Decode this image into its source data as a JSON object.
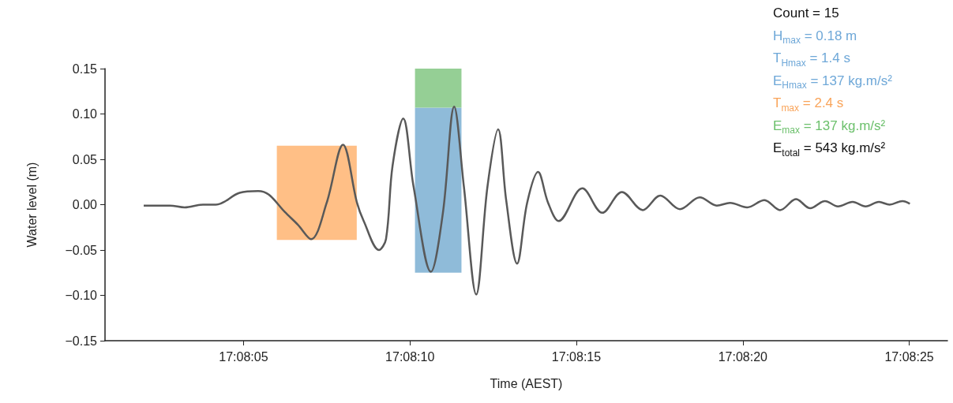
{
  "chart_data": {
    "type": "line",
    "xlabel": "Time (AEST)",
    "ylabel": "Water level (m)",
    "xlim": [
      17.133566,
      17.140597
    ],
    "xticks": [
      {
        "value": 17.134722,
        "label": "17:08:05"
      },
      {
        "value": 17.136111,
        "label": "17:08:10"
      },
      {
        "value": 17.1375,
        "label": "17:08:15"
      },
      {
        "value": 17.138889,
        "label": "17:08:20"
      },
      {
        "value": 17.140278,
        "label": "17:08:25"
      }
    ],
    "ylim": [
      -0.15,
      0.15
    ],
    "yticks": [
      {
        "value": -0.15,
        "label": "−0.15"
      },
      {
        "value": -0.1,
        "label": "−0.10"
      },
      {
        "value": -0.05,
        "label": "−0.05"
      },
      {
        "value": 0,
        "label": "0.00"
      },
      {
        "value": 0.05,
        "label": "0.05"
      },
      {
        "value": 0.1,
        "label": "0.10"
      },
      {
        "value": 0.15,
        "label": "0.15"
      }
    ],
    "grid": false,
    "series": [
      {
        "type": "histogram",
        "color": "#ffbf86",
        "bins": [
          17.135,
          17.135667
        ],
        "values": [
          0.104
        ],
        "base": [
          -0.039
        ]
      },
      {
        "type": "histogram",
        "color": "#8fbbd9",
        "bins": [
          17.136153,
          17.136541
        ],
        "values": [
          0.182
        ],
        "base": [
          -0.075
        ]
      },
      {
        "type": "histogram",
        "color": "#95cf95",
        "bins": [
          17.136153,
          17.136541
        ],
        "values": [
          0.043
        ],
        "base": [
          0.107
        ]
      },
      {
        "color": "#595959",
        "x": [
          17.133889,
          17.134108,
          17.13423,
          17.134383,
          17.134491,
          17.134689,
          17.134844,
          17.134933,
          17.135066,
          17.135175,
          17.135286,
          17.135416,
          17.135552,
          17.135669,
          17.135725,
          17.135852,
          17.135911,
          17.135966,
          17.136055,
          17.136141,
          17.136286,
          17.136386,
          17.13648,
          17.136561,
          17.136664,
          17.136758,
          17.136847,
          17.136914,
          17.137005,
          17.137089,
          17.13718,
          17.137264,
          17.137352,
          17.13755,
          17.137716,
          17.13788,
          17.138055,
          17.1382,
          17.138364,
          17.13853,
          17.138672,
          17.138783,
          17.138925,
          17.139069,
          17.1392,
          17.139333,
          17.139452,
          17.139575,
          17.139683,
          17.139805,
          17.139914,
          17.140025,
          17.140114,
          17.140222,
          17.140283
        ],
        "values": [
          -0.001,
          -0.001,
          -0.003,
          0.0,
          0.0,
          0.013,
          0.015,
          0.011,
          -0.008,
          -0.022,
          -0.038,
          0.002,
          0.066,
          0.002,
          -0.018,
          -0.05,
          -0.038,
          0.043,
          0.095,
          0.02,
          -0.074,
          -0.009,
          0.108,
          0.02,
          -0.099,
          0.02,
          0.083,
          0.005,
          -0.065,
          0.002,
          0.036,
          0.002,
          -0.018,
          0.018,
          -0.009,
          0.014,
          -0.006,
          0.01,
          -0.005,
          0.008,
          -0.001,
          0.002,
          -0.003,
          0.005,
          -0.006,
          0.006,
          -0.004,
          0.004,
          -0.002,
          0.003,
          -0.002,
          0.003,
          0.0,
          0.004,
          0.001
        ]
      }
    ],
    "marker": "none",
    "line_style": "solid",
    "annotations": [
      "Count = 15",
      "H$_{max}$ = 0.18 m",
      "T$_{Hmax}$ = 1.4 s",
      "E$_{Hmax}$ = 137 kg.m/s²",
      "T$_{max}$ = 2.4 s",
      "E$_{max}$ = 137 kg.m/s²",
      "E$_{total}$ = 543 kg.m/s²"
    ]
  }
}
